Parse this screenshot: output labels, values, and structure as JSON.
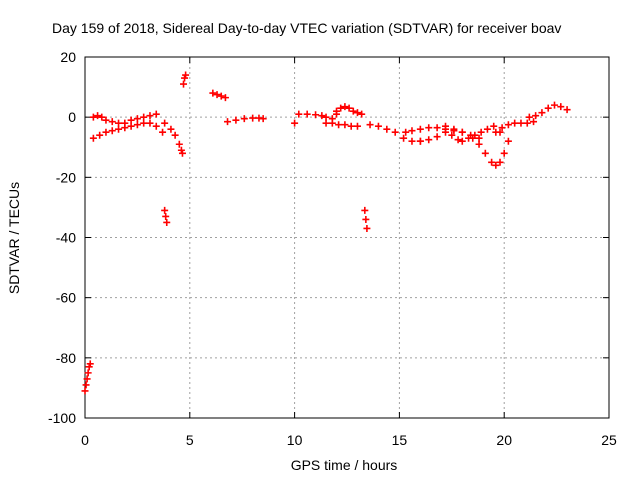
{
  "chart_data": {
    "type": "scatter",
    "title": "Day 159 of 2018, Sidereal Day-to-day VTEC variation (SDTVAR) for receiver boav",
    "xlabel": "GPS time / hours",
    "ylabel": "SDTVAR / TECUs",
    "xlim": [
      0,
      25
    ],
    "ylim": [
      -100,
      20
    ],
    "grid": true,
    "marker": "+",
    "color": "#ff0000",
    "x_ticks": [
      0,
      5,
      10,
      15,
      20,
      25
    ],
    "y_ticks": [
      -100,
      -80,
      -60,
      -40,
      -20,
      0,
      20
    ],
    "x_tick_labels": [
      "0",
      "5",
      "10",
      "15",
      "20",
      "25"
    ],
    "y_tick_labels": [
      "-100",
      "-80",
      "-60",
      "-40",
      "-20",
      "0",
      "20"
    ],
    "series": [
      {
        "name": "seg-initial-drop",
        "x": [
          0.0,
          0.05,
          0.1,
          0.15,
          0.2,
          0.25
        ],
        "y": [
          -91,
          -89,
          -87,
          -85,
          -83,
          -82
        ]
      },
      {
        "name": "seg-lower-arc",
        "x": [
          0.4,
          0.7,
          1.0,
          1.3,
          1.6,
          1.9,
          2.2,
          2.5,
          2.8,
          3.1,
          3.4,
          3.7
        ],
        "y": [
          -7,
          -6,
          -5,
          -4.5,
          -4,
          -3.5,
          -3,
          -2.5,
          -2,
          -2,
          -3,
          -5
        ]
      },
      {
        "name": "seg-upper-0-3",
        "x": [
          0.4,
          0.6,
          0.8,
          1.0,
          1.3,
          1.6,
          1.9,
          2.2,
          2.5,
          2.8,
          3.1,
          3.4
        ],
        "y": [
          0,
          0.5,
          0,
          -1,
          -1.5,
          -2,
          -2,
          -1,
          -0.5,
          0,
          0.5,
          1
        ]
      },
      {
        "name": "seg-dip-near-4",
        "x": [
          3.8,
          3.85,
          3.9
        ],
        "y": [
          -31,
          -33,
          -35
        ]
      },
      {
        "name": "seg-descent-4-5",
        "x": [
          3.8,
          4.1,
          4.3,
          4.5,
          4.6,
          4.65
        ],
        "y": [
          -2,
          -4,
          -6,
          -9,
          -11,
          -12
        ]
      },
      {
        "name": "seg-spike-4-8",
        "x": [
          4.7,
          4.75,
          4.8
        ],
        "y": [
          11,
          13,
          14
        ]
      },
      {
        "name": "seg-6-6-8",
        "x": [
          6.1,
          6.3,
          6.5,
          6.7
        ],
        "y": [
          8,
          7.5,
          7,
          6.5
        ]
      },
      {
        "name": "seg-7-8-5",
        "x": [
          6.8,
          7.2,
          7.6,
          8.0,
          8.3,
          8.5
        ],
        "y": [
          -1.5,
          -1,
          -0.5,
          -0.3,
          -0.3,
          -0.5
        ]
      },
      {
        "name": "seg-point-10",
        "x": [
          10.0
        ],
        "y": [
          -2
        ]
      },
      {
        "name": "seg-10-12",
        "x": [
          10.2,
          10.6,
          11.0,
          11.3,
          11.5,
          11.8,
          12.0
        ],
        "y": [
          1,
          1,
          0.8,
          0.5,
          0,
          -0.5,
          1
        ]
      },
      {
        "name": "seg-11-13",
        "x": [
          11.5,
          11.8,
          12.1,
          12.4,
          12.7,
          13.0
        ],
        "y": [
          -2,
          -2,
          -2.5,
          -2.5,
          -3,
          -3
        ]
      },
      {
        "name": "seg-12-13-hump",
        "x": [
          12.0,
          12.2,
          12.4,
          12.6,
          12.8,
          13.0,
          13.2
        ],
        "y": [
          2,
          3,
          3.5,
          3,
          2,
          1.5,
          1
        ]
      },
      {
        "name": "seg-dip-near-13-5",
        "x": [
          13.35,
          13.4,
          13.45
        ],
        "y": [
          -31,
          -34,
          -37
        ]
      },
      {
        "name": "seg-13-5-16",
        "x": [
          13.6,
          14.0,
          14.4,
          14.8,
          15.2,
          15.6,
          16.0
        ],
        "y": [
          -2.5,
          -3,
          -4,
          -5,
          -7,
          -8,
          -8
        ]
      },
      {
        "name": "seg-15-18",
        "x": [
          15.3,
          15.6,
          16.0,
          16.4,
          16.8,
          17.2,
          17.6,
          18.0
        ],
        "y": [
          -5,
          -4.5,
          -4,
          -3.5,
          -3.5,
          -4,
          -4.5,
          -5
        ]
      },
      {
        "name": "seg-16-18-lower",
        "x": [
          16.0,
          16.4,
          16.8,
          17.2,
          17.5,
          17.8,
          18.0
        ],
        "y": [
          -8,
          -7.5,
          -6.5,
          -5,
          -6,
          -7.5,
          -8
        ]
      },
      {
        "name": "seg-17-19",
        "x": [
          17.2,
          17.6,
          18.0,
          18.4,
          18.8
        ],
        "y": [
          -3,
          -4,
          -5,
          -6,
          -7
        ]
      },
      {
        "name": "seg-18-20-v",
        "x": [
          18.5,
          18.8,
          19.1,
          19.4,
          19.6,
          19.8,
          20.0,
          20.2
        ],
        "y": [
          -7,
          -9,
          -12,
          -15,
          -16,
          -15,
          -12,
          -8
        ]
      },
      {
        "name": "seg-19-20-upper",
        "x": [
          18.3,
          18.6,
          18.9,
          19.2,
          19.5,
          19.8
        ],
        "y": [
          -7,
          -6,
          -5,
          -4,
          -3,
          -5
        ]
      },
      {
        "name": "seg-19-5-21-5",
        "x": [
          19.6,
          19.9,
          20.2,
          20.5,
          20.8,
          21.1,
          21.4
        ],
        "y": [
          -5,
          -3.5,
          -2.5,
          -2,
          -2,
          -2,
          -1.5
        ]
      },
      {
        "name": "seg-21-23",
        "x": [
          21.2,
          21.5,
          21.8,
          22.1,
          22.4,
          22.7,
          23.0
        ],
        "y": [
          0,
          0.5,
          1.5,
          3,
          4,
          3.5,
          2.5
        ]
      }
    ]
  }
}
